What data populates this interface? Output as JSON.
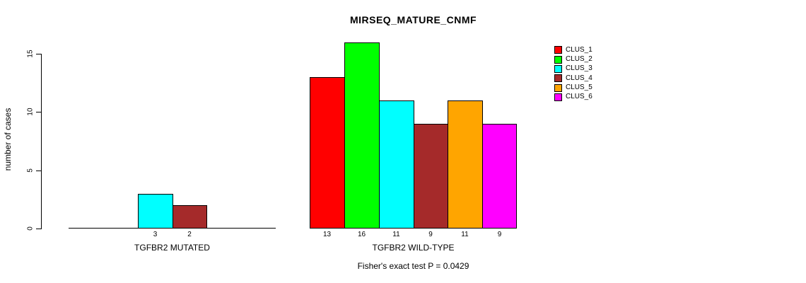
{
  "chart_data": {
    "type": "bar",
    "title": "MIRSEQ_MATURE_CNMF",
    "ylabel": "number of cases",
    "ylim": [
      0,
      16
    ],
    "yticks": [
      0,
      5,
      10,
      15
    ],
    "grid": false,
    "legend_position": "right",
    "clusters": [
      {
        "name": "CLUS_1",
        "color": "#FF0000"
      },
      {
        "name": "CLUS_2",
        "color": "#00FF00"
      },
      {
        "name": "CLUS_3",
        "color": "#00FFFF"
      },
      {
        "name": "CLUS_4",
        "color": "#A52A2A"
      },
      {
        "name": "CLUS_5",
        "color": "#FFA500"
      },
      {
        "name": "CLUS_6",
        "color": "#FF00FF"
      }
    ],
    "groups": [
      {
        "label": "TGFBR2 MUTATED",
        "values": [
          0,
          0,
          3,
          2,
          0,
          0
        ]
      },
      {
        "label": "TGFBR2 WILD-TYPE",
        "values": [
          13,
          16,
          11,
          9,
          11,
          9
        ]
      }
    ],
    "annotation": "Fisher's exact test P = 0.0429"
  }
}
